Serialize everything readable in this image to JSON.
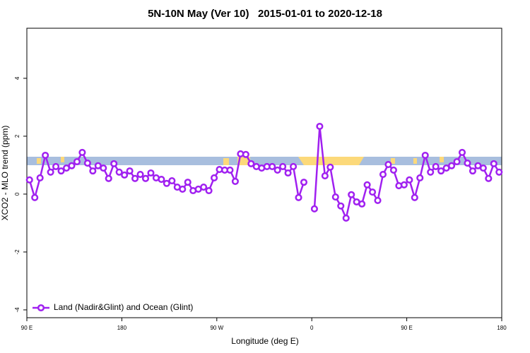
{
  "chart_data": {
    "type": "line",
    "title": "5N-10N May (Ver 10)   2015-01-01 to 2020-12-18",
    "xlabel": "Longitude (deg E)",
    "ylabel": "XCO2 - MLO trend (ppm)",
    "xlim": [
      90,
      540
    ],
    "xticks": [
      {
        "value": 90,
        "label": "90 E"
      },
      {
        "value": 180,
        "label": "180"
      },
      {
        "value": 270,
        "label": "90 W"
      },
      {
        "value": 360,
        "label": "0"
      },
      {
        "value": 450,
        "label": "90 E"
      },
      {
        "value": 540,
        "label": "180"
      }
    ],
    "ylim": [
      -4.27,
      5.73
    ],
    "yticks": [
      -4,
      -2,
      0,
      2,
      4
    ],
    "legend": "bottom-left",
    "x": [
      92.5,
      97.5,
      102.5,
      107.5,
      112.5,
      117.5,
      122.5,
      127.5,
      132.5,
      137.5,
      142.5,
      147.5,
      152.5,
      157.5,
      162.5,
      167.5,
      172.5,
      177.5,
      182.5,
      187.5,
      192.5,
      197.5,
      202.5,
      207.5,
      212.5,
      217.5,
      222.5,
      227.5,
      232.5,
      237.5,
      242.5,
      247.5,
      252.5,
      257.5,
      262.5,
      267.5,
      272.5,
      277.5,
      282.5,
      287.5,
      292.5,
      297.5,
      302.5,
      307.5,
      312.5,
      317.5,
      322.5,
      327.5,
      332.5,
      337.5,
      342.5,
      347.5,
      352.5,
      357.5,
      362.5,
      367.5,
      372.5,
      377.5,
      382.5,
      387.5,
      392.5,
      397.5,
      402.5,
      407.5,
      412.5,
      417.5,
      422.5,
      427.5,
      432.5,
      437.5,
      442.5,
      447.5,
      452.5,
      457.5,
      462.5,
      467.5,
      472.5,
      477.5,
      482.5,
      487.5,
      492.5,
      497.5,
      502.5,
      507.5,
      512.5,
      517.5,
      522.5,
      527.5,
      532.5,
      537.5
    ],
    "series": [
      {
        "name": "Land (Nadir&Glint) and Ocean (Glint)",
        "color": "#a020f0",
        "values": [
          0.49,
          -0.12,
          0.56,
          1.34,
          0.76,
          0.95,
          0.8,
          0.9,
          0.98,
          1.12,
          1.44,
          1.07,
          0.8,
          0.98,
          0.9,
          0.54,
          1.05,
          0.76,
          0.66,
          0.8,
          0.54,
          0.68,
          0.54,
          0.73,
          0.56,
          0.51,
          0.37,
          0.46,
          0.24,
          0.17,
          0.41,
          0.12,
          0.17,
          0.24,
          0.12,
          0.56,
          0.85,
          0.83,
          0.83,
          0.44,
          1.39,
          1.37,
          1.05,
          0.95,
          0.9,
          0.95,
          0.95,
          0.83,
          0.95,
          0.73,
          0.95,
          -0.12,
          0.41,
          null,
          -0.51,
          2.34,
          0.63,
          0.93,
          -0.1,
          -0.41,
          -0.83,
          -0.02,
          -0.27,
          -0.34,
          0.32,
          0.07,
          -0.22,
          0.68,
          1.02,
          0.83,
          0.29,
          0.32,
          0.49,
          -0.12,
          0.56,
          1.34,
          0.76,
          0.95,
          0.8,
          0.9,
          0.98,
          1.12,
          1.44,
          1.07,
          0.8,
          0.98,
          0.9,
          0.54,
          1.05,
          0.76
        ]
      }
    ]
  }
}
